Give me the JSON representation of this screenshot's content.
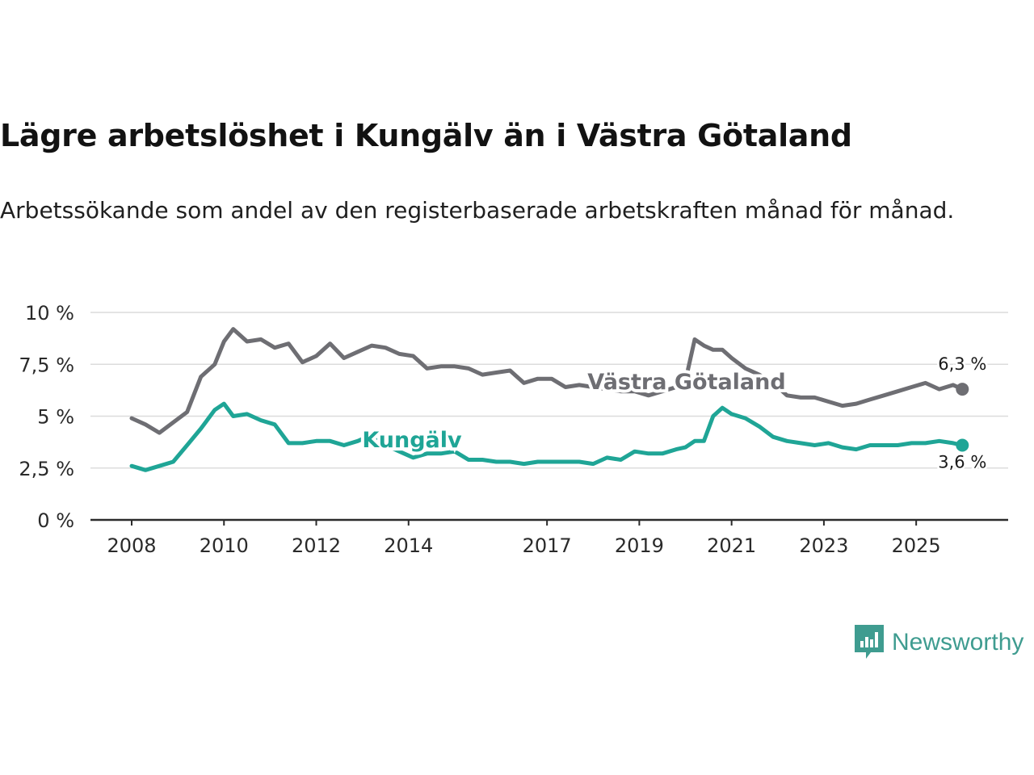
{
  "title": "Lägre arbetslöshet i Kungälv än i Västra Götaland",
  "subtitle": "Arbetssökande som andel av den registerbaserade arbetskraften månad för månad.",
  "brand": {
    "name": "Newsworthy",
    "color": "#3f9c90"
  },
  "chart_data": {
    "type": "line",
    "title": "Lägre arbetslöshet i Kungälv än i Västra Götaland",
    "xlabel": "",
    "ylabel": "",
    "xlim": [
      2008.0,
      2026.1
    ],
    "ylim": [
      0,
      10
    ],
    "grid": true,
    "x_ticks": [
      {
        "value": 2008,
        "label": "2008"
      },
      {
        "value": 2010,
        "label": "2010"
      },
      {
        "value": 2012,
        "label": "2012"
      },
      {
        "value": 2014,
        "label": "2014"
      },
      {
        "value": 2017,
        "label": "2017"
      },
      {
        "value": 2019,
        "label": "2019"
      },
      {
        "value": 2021,
        "label": "2021"
      },
      {
        "value": 2023,
        "label": "2023"
      },
      {
        "value": 2025,
        "label": "2025"
      }
    ],
    "y_ticks": [
      {
        "value": 0,
        "label": "0 %"
      },
      {
        "value": 2.5,
        "label": "2,5 %"
      },
      {
        "value": 5,
        "label": "5 %"
      },
      {
        "value": 7.5,
        "label": "7,5 %"
      },
      {
        "value": 10,
        "label": "10 %"
      }
    ],
    "series": [
      {
        "name": "Västra Götaland",
        "color": "#6e6e73",
        "end_label": "6,3 %",
        "x": [
          2008.0,
          2008.3,
          2008.6,
          2008.9,
          2009.2,
          2009.5,
          2009.8,
          2010.0,
          2010.2,
          2010.5,
          2010.8,
          2011.1,
          2011.4,
          2011.7,
          2012.0,
          2012.3,
          2012.6,
          2012.9,
          2013.2,
          2013.5,
          2013.8,
          2014.1,
          2014.4,
          2014.7,
          2015.0,
          2015.3,
          2015.6,
          2015.9,
          2016.2,
          2016.5,
          2016.8,
          2017.1,
          2017.4,
          2017.7,
          2018.0,
          2018.3,
          2018.6,
          2018.9,
          2019.2,
          2019.5,
          2019.8,
          2020.0,
          2020.2,
          2020.4,
          2020.6,
          2020.8,
          2021.0,
          2021.3,
          2021.6,
          2021.9,
          2022.2,
          2022.5,
          2022.8,
          2023.1,
          2023.4,
          2023.7,
          2024.0,
          2024.3,
          2024.6,
          2024.9,
          2025.2,
          2025.5,
          2025.8,
          2026.0
        ],
        "values": [
          4.9,
          4.6,
          4.2,
          4.7,
          5.2,
          6.9,
          7.5,
          8.6,
          9.2,
          8.6,
          8.7,
          8.3,
          8.5,
          7.6,
          7.9,
          8.5,
          7.8,
          8.1,
          8.4,
          8.3,
          8.0,
          7.9,
          7.3,
          7.4,
          7.4,
          7.3,
          7.0,
          7.1,
          7.2,
          6.6,
          6.8,
          6.8,
          6.4,
          6.5,
          6.4,
          6.3,
          6.2,
          6.2,
          6.0,
          6.2,
          6.4,
          6.7,
          8.7,
          8.4,
          8.2,
          8.2,
          7.8,
          7.3,
          7.0,
          6.6,
          6.0,
          5.9,
          5.9,
          5.7,
          5.5,
          5.6,
          5.8,
          6.0,
          6.2,
          6.4,
          6.6,
          6.3,
          6.5,
          6.3
        ]
      },
      {
        "name": "Kungälv",
        "color": "#1fa596",
        "end_label": "3,6 %",
        "x": [
          2008.0,
          2008.3,
          2008.6,
          2008.9,
          2009.2,
          2009.5,
          2009.8,
          2010.0,
          2010.2,
          2010.5,
          2010.8,
          2011.1,
          2011.4,
          2011.7,
          2012.0,
          2012.3,
          2012.6,
          2012.9,
          2013.2,
          2013.5,
          2013.8,
          2014.1,
          2014.4,
          2014.7,
          2015.0,
          2015.3,
          2015.6,
          2015.9,
          2016.2,
          2016.5,
          2016.8,
          2017.1,
          2017.4,
          2017.7,
          2018.0,
          2018.3,
          2018.6,
          2018.9,
          2019.2,
          2019.5,
          2019.8,
          2020.0,
          2020.2,
          2020.4,
          2020.6,
          2020.8,
          2021.0,
          2021.3,
          2021.6,
          2021.9,
          2022.2,
          2022.5,
          2022.8,
          2023.1,
          2023.4,
          2023.7,
          2024.0,
          2024.3,
          2024.6,
          2024.9,
          2025.2,
          2025.5,
          2025.8,
          2026.0
        ],
        "values": [
          2.6,
          2.4,
          2.6,
          2.8,
          3.6,
          4.4,
          5.3,
          5.6,
          5.0,
          5.1,
          4.8,
          4.6,
          3.7,
          3.7,
          3.8,
          3.8,
          3.6,
          3.8,
          4.1,
          3.6,
          3.3,
          3.0,
          3.2,
          3.2,
          3.3,
          2.9,
          2.9,
          2.8,
          2.8,
          2.7,
          2.8,
          2.8,
          2.8,
          2.8,
          2.7,
          3.0,
          2.9,
          3.3,
          3.2,
          3.2,
          3.4,
          3.5,
          3.8,
          3.8,
          5.0,
          5.4,
          5.1,
          4.9,
          4.5,
          4.0,
          3.8,
          3.7,
          3.6,
          3.7,
          3.5,
          3.4,
          3.6,
          3.6,
          3.6,
          3.7,
          3.7,
          3.8,
          3.7,
          3.6
        ]
      }
    ]
  }
}
